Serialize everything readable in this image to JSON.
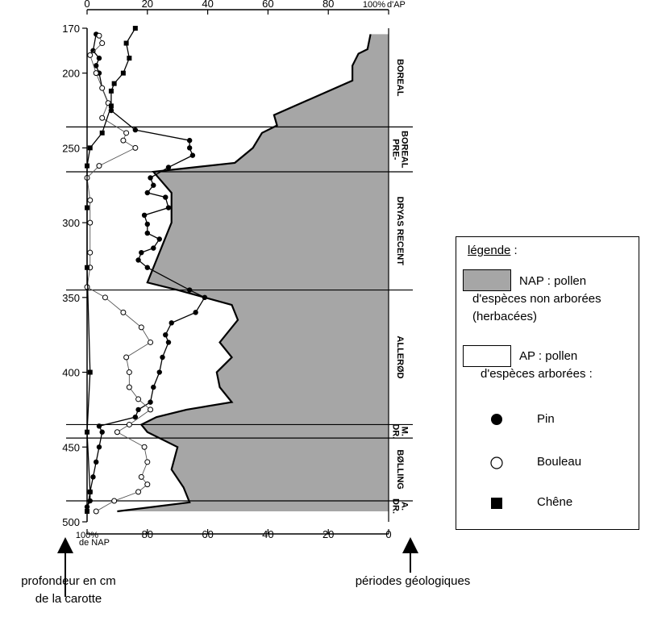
{
  "chart_data": {
    "type": "line",
    "y_axis": {
      "label": "profondeur en cm de la carotte",
      "ticks": [
        170,
        200,
        250,
        300,
        350,
        400,
        450,
        500
      ],
      "range": [
        170,
        500
      ]
    },
    "top_axis": {
      "ticks": [
        "0",
        "20",
        "40",
        "60",
        "80",
        "100%"
      ],
      "unit_label": "d'AP"
    },
    "bottom_axis": {
      "ticks": [
        "100%",
        "80",
        "60",
        "40",
        "20",
        "0"
      ],
      "unit_label": "de NAP"
    },
    "periods": [
      {
        "label": "BOREAL",
        "from": 170,
        "to": 236
      },
      {
        "label": "PRE-BOREAL",
        "from": 236,
        "to": 266
      },
      {
        "label": "DRYAS RECENT",
        "from": 266,
        "to": 345
      },
      {
        "label": "ALLERØD",
        "from": 345,
        "to": 435
      },
      {
        "label": "DR. M.",
        "from": 435,
        "to": 444
      },
      {
        "label": "BØLLING",
        "from": 444,
        "to": 486
      },
      {
        "label": "DR. A.",
        "from": 486,
        "to": 493
      }
    ],
    "boundaries": [
      236,
      266,
      345,
      435,
      444,
      486
    ],
    "series": [
      {
        "name": "NAP : pollen d'espèces non arborées (herbacées)",
        "kind": "area",
        "points": [
          [
            174,
            6
          ],
          [
            184,
            7
          ],
          [
            187,
            10
          ],
          [
            195,
            12
          ],
          [
            205,
            12
          ],
          [
            228,
            38
          ],
          [
            235,
            37
          ],
          [
            240,
            42
          ],
          [
            250,
            45
          ],
          [
            260,
            51
          ],
          [
            266,
            78
          ],
          [
            280,
            72
          ],
          [
            300,
            72
          ],
          [
            340,
            80
          ],
          [
            345,
            70
          ],
          [
            355,
            52
          ],
          [
            365,
            50
          ],
          [
            380,
            56
          ],
          [
            390,
            52
          ],
          [
            400,
            57
          ],
          [
            410,
            56
          ],
          [
            420,
            52
          ],
          [
            425,
            67
          ],
          [
            430,
            77
          ],
          [
            435,
            82
          ],
          [
            440,
            80
          ],
          [
            450,
            70
          ],
          [
            465,
            72
          ],
          [
            477,
            68
          ],
          [
            487,
            66
          ],
          [
            493,
            90
          ]
        ]
      },
      {
        "name": "Pin",
        "kind": "line",
        "marker": "filled-circle",
        "points": [
          [
            174,
            97
          ],
          [
            185,
            98
          ],
          [
            190,
            96
          ],
          [
            195,
            97
          ],
          [
            200,
            96
          ],
          [
            210,
            95
          ],
          [
            220,
            93
          ],
          [
            225,
            92
          ],
          [
            238,
            84
          ],
          [
            245,
            66
          ],
          [
            250,
            66
          ],
          [
            255,
            65
          ],
          [
            263,
            73
          ],
          [
            270,
            79
          ],
          [
            275,
            78
          ],
          [
            280,
            80
          ],
          [
            283,
            74
          ],
          [
            290,
            73
          ],
          [
            295,
            81
          ],
          [
            301,
            80
          ],
          [
            307,
            80
          ],
          [
            311,
            76
          ],
          [
            317,
            78
          ],
          [
            320,
            82
          ],
          [
            325,
            83
          ],
          [
            330,
            80
          ],
          [
            345,
            66
          ],
          [
            350,
            61
          ],
          [
            360,
            64
          ],
          [
            367,
            72
          ],
          [
            375,
            74
          ],
          [
            380,
            73
          ],
          [
            390,
            75
          ],
          [
            400,
            76
          ],
          [
            410,
            78
          ],
          [
            420,
            79
          ],
          [
            425,
            83
          ],
          [
            430,
            84
          ],
          [
            436,
            96
          ],
          [
            440,
            95
          ],
          [
            450,
            96
          ],
          [
            460,
            97
          ],
          [
            470,
            98
          ],
          [
            480,
            99
          ],
          [
            486,
            99
          ],
          [
            490,
            100
          ]
        ]
      },
      {
        "name": "Bouleau",
        "kind": "line",
        "marker": "open-circle",
        "points": [
          [
            175,
            96
          ],
          [
            180,
            95
          ],
          [
            188,
            99
          ],
          [
            200,
            97
          ],
          [
            210,
            95
          ],
          [
            220,
            93
          ],
          [
            230,
            95
          ],
          [
            240,
            87
          ],
          [
            245,
            88
          ],
          [
            250,
            84
          ],
          [
            262,
            96
          ],
          [
            270,
            100
          ],
          [
            285,
            99
          ],
          [
            300,
            99
          ],
          [
            320,
            99
          ],
          [
            330,
            99
          ],
          [
            343,
            100
          ],
          [
            350,
            94
          ],
          [
            360,
            88
          ],
          [
            370,
            82
          ],
          [
            380,
            79
          ],
          [
            390,
            87
          ],
          [
            400,
            86
          ],
          [
            410,
            86
          ],
          [
            418,
            83
          ],
          [
            425,
            79
          ],
          [
            435,
            86
          ],
          [
            440,
            90
          ],
          [
            450,
            81
          ],
          [
            460,
            80
          ],
          [
            470,
            82
          ],
          [
            475,
            80
          ],
          [
            480,
            83
          ],
          [
            486,
            91
          ],
          [
            493,
            97
          ]
        ]
      },
      {
        "name": "Chêne",
        "kind": "line",
        "marker": "filled-square",
        "points": [
          [
            170,
            84
          ],
          [
            180,
            87
          ],
          [
            190,
            86
          ],
          [
            200,
            88
          ],
          [
            207,
            91
          ],
          [
            212,
            92
          ],
          [
            222,
            92
          ],
          [
            240,
            95
          ],
          [
            250,
            99
          ],
          [
            262,
            100
          ],
          [
            290,
            100
          ],
          [
            330,
            100
          ],
          [
            400,
            99
          ],
          [
            440,
            100
          ],
          [
            480,
            99
          ],
          [
            493,
            100
          ]
        ]
      }
    ]
  },
  "legend": {
    "title": "légende",
    "title_suffix": " :",
    "nap_text": [
      "NAP : pollen",
      "d'espèces non arborées",
      "(herbacées)"
    ],
    "ap_text": [
      "AP : pollen",
      "d'espèces arborées :"
    ],
    "markers": [
      "Pin",
      "Bouleau",
      "Chêne"
    ]
  },
  "captions": {
    "left": [
      "profondeur en cm",
      "de la carotte"
    ],
    "right": "périodes géologiques"
  },
  "colors": {
    "nap_fill": "#a6a6a6",
    "axis": "#000000"
  }
}
